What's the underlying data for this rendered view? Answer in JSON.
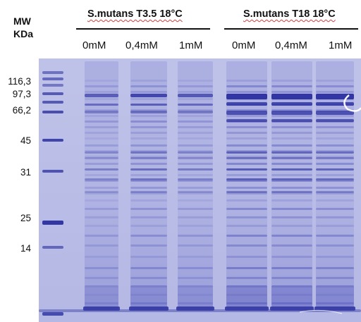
{
  "axis_header": {
    "mw": "MW",
    "unit": "KDa"
  },
  "groups": [
    {
      "title": "S.mutans T3.5 18°C",
      "concentrations": [
        "0mM",
        "0,4mM",
        "1mM"
      ]
    },
    {
      "title": "S.mutans T18 18°C",
      "concentrations": [
        "0mM",
        "0,4mM",
        "1mM"
      ]
    }
  ],
  "markers": [
    "116,3",
    "97,3",
    "66,2",
    "45",
    "31",
    "25",
    "14"
  ],
  "colors": {
    "gel_background": "#c4c7ea",
    "band": "#4c50b8",
    "strong_band": "#2a2fa0"
  }
}
